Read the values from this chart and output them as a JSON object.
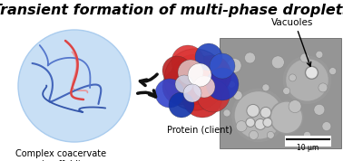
{
  "title": "Transient formation of multi-phase droplets",
  "title_fontsize": 11.5,
  "title_style": "italic",
  "title_weight": "bold",
  "title_color": "#000000",
  "background_color": "#ffffff",
  "coacervate_label": "Complex coacervate\n(scaffold)",
  "protein_label": "Protein (client)",
  "vacuoles_label": "Vacuoles",
  "scale_label": "10 μm",
  "coacervate_circle_color": "#c8dff5",
  "coacervate_circle_edge": "#aaccee",
  "label_fontsize": 7.0,
  "vacuoles_label_fontsize": 7.5
}
